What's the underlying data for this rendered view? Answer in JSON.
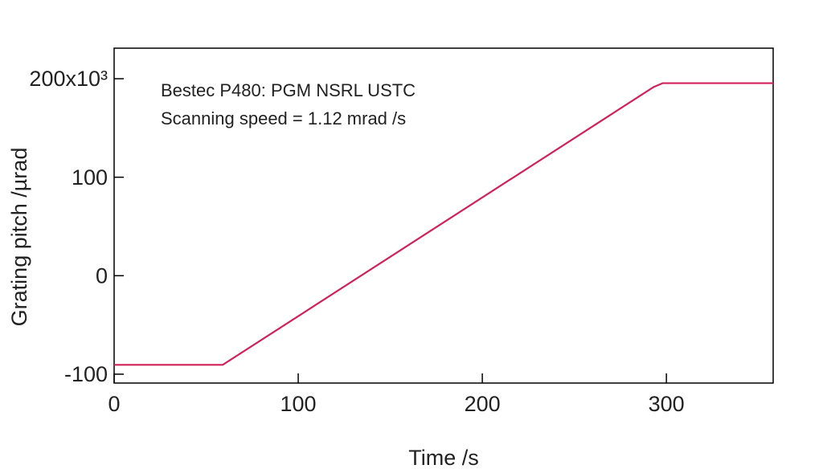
{
  "chart_data": {
    "type": "line",
    "annotations": [
      "Bestec P480: PGM NSRL USTC",
      "Scanning speed = 1.12 mrad /s"
    ],
    "x_label": "Time /s",
    "y_label": "Grating pitch /µrad",
    "x": [
      0,
      59,
      293,
      298,
      358
    ],
    "series": [
      {
        "color": "#d0215a",
        "values": [
          -90.5,
          -90.5,
          191.5,
          195.5,
          195.5
        ]
      }
    ],
    "xlim": [
      0,
      358
    ],
    "xticks": [
      0,
      100,
      200,
      300
    ],
    "ylim": [
      -109,
      231
    ],
    "yticks": [
      -100,
      0,
      100,
      {
        "value": 200,
        "label": "200x10³"
      }
    ]
  }
}
